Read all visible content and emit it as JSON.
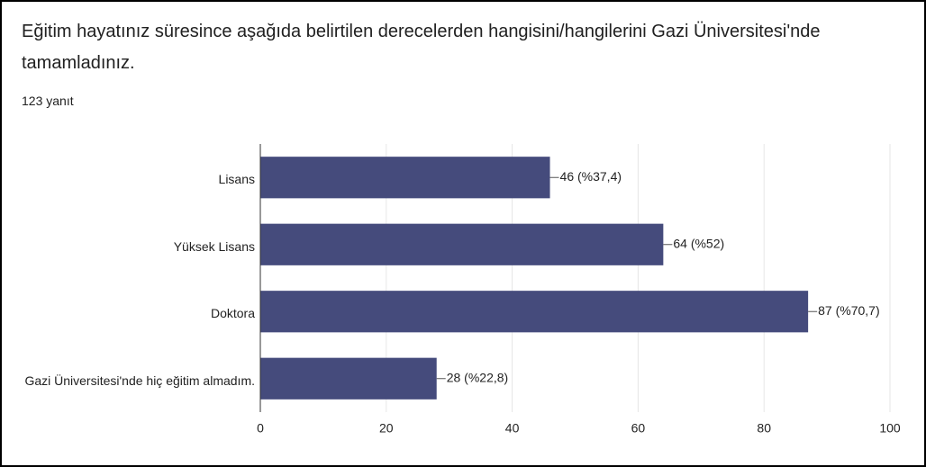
{
  "chart_data": {
    "type": "bar",
    "orientation": "horizontal",
    "title": "Eğitim hayatınız süresince aşağıda belirtilen derecelerden hangisini/hangilerini Gazi Üniversitesi'nde tamamladınız.",
    "subtitle": "123 yanıt",
    "categories": [
      "Lisans",
      "Yüksek Lisans",
      "Doktora",
      "Gazi Üniversitesi'nde hiç eğitim almadım."
    ],
    "values": [
      46,
      64,
      87,
      28
    ],
    "value_labels": [
      "46 (%37,4)",
      "64 (%52)",
      "87 (%70,7)",
      "28 (%22,8)"
    ],
    "color": "#454b7c",
    "xlim": [
      0,
      100
    ],
    "xticks": [
      0,
      20,
      40,
      60,
      80,
      100
    ],
    "grid": true
  }
}
